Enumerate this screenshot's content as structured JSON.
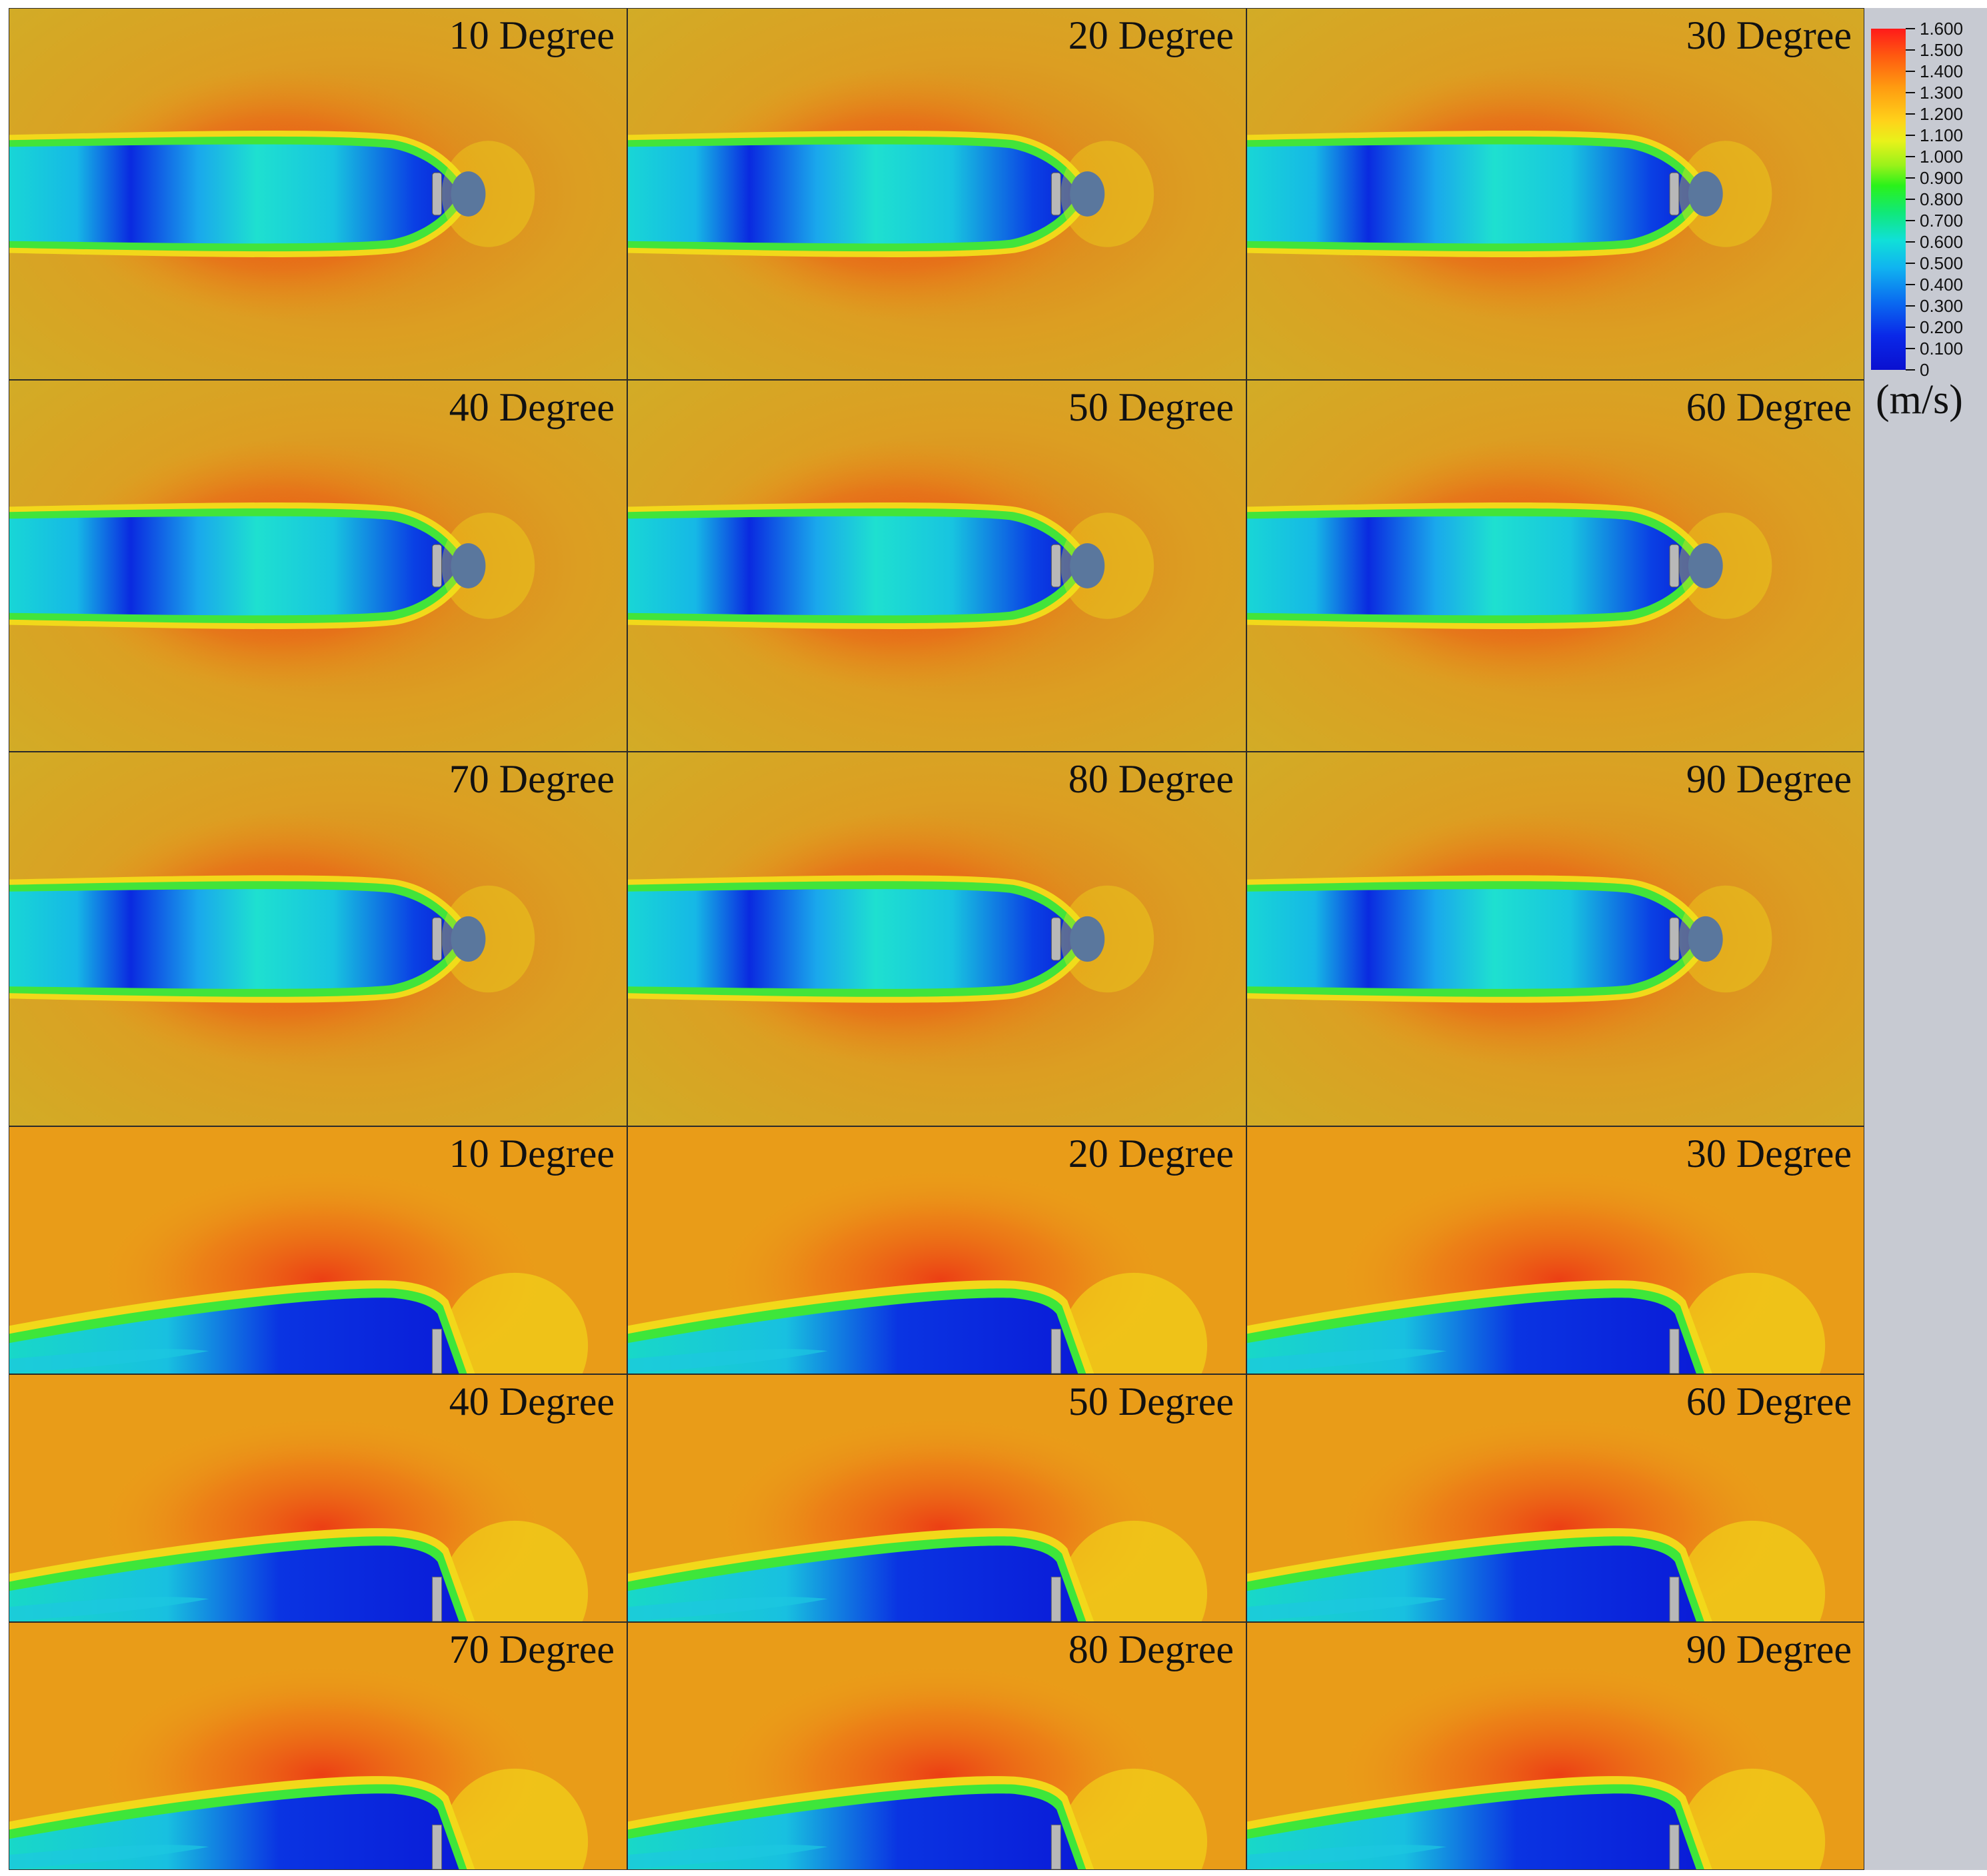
{
  "top_section": {
    "panels": [
      {
        "label": "10 Degree"
      },
      {
        "label": "20 Degree"
      },
      {
        "label": "30 Degree"
      },
      {
        "label": "40 Degree"
      },
      {
        "label": "50 Degree"
      },
      {
        "label": "60 Degree"
      },
      {
        "label": "70 Degree"
      },
      {
        "label": "80 Degree"
      },
      {
        "label": "90 Degree"
      }
    ]
  },
  "bottom_section": {
    "panels": [
      {
        "label": "10 Degree"
      },
      {
        "label": "20 Degree"
      },
      {
        "label": "30 Degree"
      },
      {
        "label": "40 Degree"
      },
      {
        "label": "50 Degree"
      },
      {
        "label": "60 Degree"
      },
      {
        "label": "70 Degree"
      },
      {
        "label": "80 Degree"
      },
      {
        "label": "90 Degree"
      }
    ]
  },
  "legend": {
    "ticks": [
      "1.600",
      "1.500",
      "1.400",
      "1.300",
      "1.200",
      "1.100",
      "1.000",
      "0.900",
      "0.800",
      "0.700",
      "0.600",
      "0.500",
      "0.400",
      "0.300",
      "0.200",
      "0.100",
      "0"
    ],
    "unit": "(m/s)"
  },
  "colors": {
    "top_background": "#d9a820",
    "bottom_background": "#e89a18",
    "high_speed": "#e8421a",
    "mid_speed": "#1ee8d8",
    "low_speed": "#0a2ae0",
    "body": "#b8b8b8"
  }
}
